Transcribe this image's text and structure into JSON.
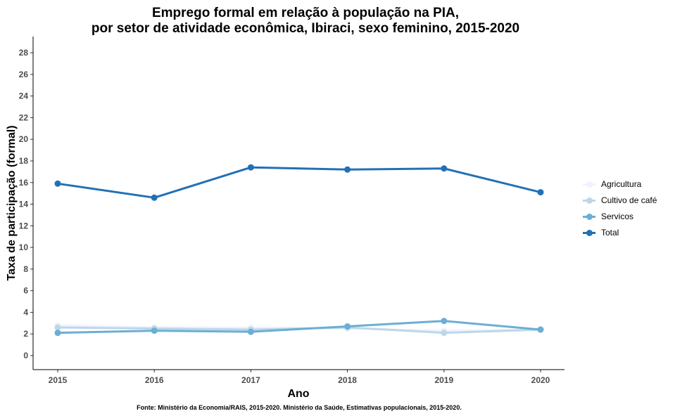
{
  "chart_data": {
    "type": "line",
    "title": "Emprego formal em relação à população na PIA,",
    "subtitle": "por setor de atividade econômica, Ibiraci, sexo feminino, 2015-2020",
    "xlabel": "Ano",
    "ylabel": "Taxa de participação (formal)",
    "caption": "Fonte: Ministério da Economia/RAIS, 2015-2020. Ministério da Saúde, Estimativas populacionais, 2015-2020.",
    "x": [
      "2015",
      "2016",
      "2017",
      "2018",
      "2019",
      "2020"
    ],
    "ylim": [
      -1.3,
      29.5
    ],
    "yticks": [
      0,
      2,
      4,
      6,
      8,
      10,
      12,
      14,
      16,
      18,
      20,
      22,
      24,
      26,
      28
    ],
    "grid": false,
    "legend_position": "right",
    "series": [
      {
        "name": "Agricultura",
        "color": "#eff3ff",
        "values": [
          2.8,
          2.6,
          2.6,
          2.5,
          2.3,
          2.4
        ]
      },
      {
        "name": "Cultivo de café",
        "color": "#bdd7e7",
        "values": [
          2.6,
          2.5,
          2.4,
          2.6,
          2.1,
          2.4
        ]
      },
      {
        "name": "Servicos",
        "color": "#6baed6",
        "values": [
          2.1,
          2.3,
          2.2,
          2.7,
          3.2,
          2.4
        ]
      },
      {
        "name": "Total",
        "color": "#2171b5",
        "values": [
          15.9,
          14.6,
          17.4,
          17.2,
          17.3,
          15.1
        ]
      }
    ]
  }
}
